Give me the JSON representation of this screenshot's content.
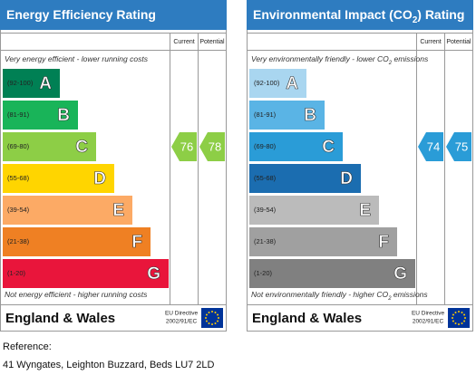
{
  "panels": [
    {
      "title_parts": [
        "Energy Efficiency Rating"
      ],
      "header": {
        "current": "Current",
        "potential": "Potential"
      },
      "top_note_parts": [
        "Very energy efficient - lower running costs"
      ],
      "bands": [
        {
          "range": "(92-100)",
          "letter": "A",
          "color": "#008054"
        },
        {
          "range": "(81-91)",
          "letter": "B",
          "color": "#19b459"
        },
        {
          "range": "(69-80)",
          "letter": "C",
          "color": "#8dce46"
        },
        {
          "range": "(55-68)",
          "letter": "D",
          "color": "#ffd500"
        },
        {
          "range": "(39-54)",
          "letter": "E",
          "color": "#fcaa65"
        },
        {
          "range": "(21-38)",
          "letter": "F",
          "color": "#ef8023"
        },
        {
          "range": "(1-20)",
          "letter": "G",
          "color": "#e9153b"
        }
      ],
      "bottom_note_parts": [
        "Not energy efficient - higher running costs"
      ],
      "footer": {
        "region": "England & Wales",
        "directive": [
          "EU Directive",
          "2002/91/EC"
        ]
      },
      "current": 76,
      "potential": 78,
      "pointer_color": "#8dce46"
    },
    {
      "title_parts": [
        "Environmental Impact (CO",
        "2",
        ") Rating"
      ],
      "header": {
        "current": "Current",
        "potential": "Potential"
      },
      "top_note_parts": [
        "Very environmentally friendly - lower CO",
        "2",
        " emissions"
      ],
      "bands": [
        {
          "range": "(92-100)",
          "letter": "A",
          "color": "#a9d6f0"
        },
        {
          "range": "(81-91)",
          "letter": "B",
          "color": "#5ab4e5"
        },
        {
          "range": "(69-80)",
          "letter": "C",
          "color": "#2a9cd7"
        },
        {
          "range": "(55-68)",
          "letter": "D",
          "color": "#1b6db0"
        },
        {
          "range": "(39-54)",
          "letter": "E",
          "color": "#bbbbbb"
        },
        {
          "range": "(21-38)",
          "letter": "F",
          "color": "#a0a0a0"
        },
        {
          "range": "(1-20)",
          "letter": "G",
          "color": "#808080"
        }
      ],
      "bottom_note_parts": [
        "Not environmentally friendly - higher CO",
        "2",
        " emissions"
      ],
      "footer": {
        "region": "England & Wales",
        "directive": [
          "EU Directive",
          "2002/91/EC"
        ]
      },
      "current": 74,
      "potential": 75,
      "pointer_color": "#2a9cd7"
    }
  ],
  "reference": {
    "label": "Reference:",
    "address": "41 Wyngates, Leighton Buzzard, Beds LU7 2LD"
  }
}
